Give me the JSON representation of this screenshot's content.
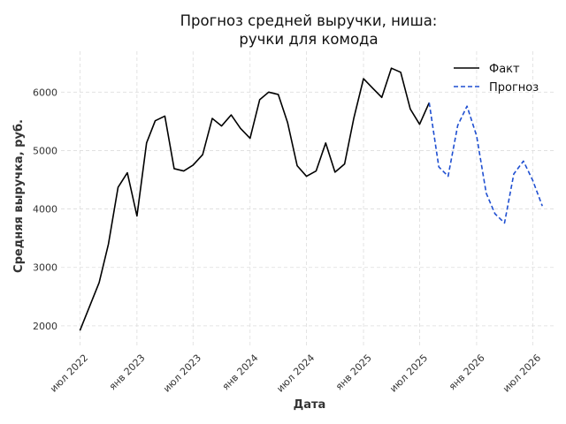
{
  "chart_data": {
    "type": "line",
    "title": [
      "Прогноз средней выручки, ниша:",
      "ручки для комода"
    ],
    "xlabel": "Дата",
    "ylabel": "Средняя выручка, руб.",
    "ylim": [
      1650,
      6700
    ],
    "xlim": [
      "2022-05-01",
      "2026-09-15"
    ],
    "yticks": [
      2000,
      3000,
      4000,
      5000,
      6000
    ],
    "xticks": [
      {
        "date": "2022-07-01",
        "label": "июл 2022"
      },
      {
        "date": "2023-01-01",
        "label": "янв 2023"
      },
      {
        "date": "2023-07-01",
        "label": "июл 2023"
      },
      {
        "date": "2024-01-01",
        "label": "янв 2024"
      },
      {
        "date": "2024-07-01",
        "label": "июл 2024"
      },
      {
        "date": "2025-01-01",
        "label": "янв 2025"
      },
      {
        "date": "2025-07-01",
        "label": "июл 2025"
      },
      {
        "date": "2026-01-01",
        "label": "янв 2026"
      },
      {
        "date": "2026-07-01",
        "label": "июл 2026"
      }
    ],
    "grid": true,
    "legend_position": "top-right",
    "series": [
      {
        "name": "Факт",
        "color": "#000000",
        "style": "solid",
        "points": [
          [
            "2022-07-01",
            1920
          ],
          [
            "2022-08-01",
            2330
          ],
          [
            "2022-09-01",
            2740
          ],
          [
            "2022-10-01",
            3400
          ],
          [
            "2022-11-01",
            4370
          ],
          [
            "2022-12-01",
            4620
          ],
          [
            "2023-01-01",
            3880
          ],
          [
            "2023-02-01",
            5130
          ],
          [
            "2023-03-01",
            5510
          ],
          [
            "2023-04-01",
            5590
          ],
          [
            "2023-05-01",
            4690
          ],
          [
            "2023-06-01",
            4650
          ],
          [
            "2023-07-01",
            4750
          ],
          [
            "2023-08-01",
            4930
          ],
          [
            "2023-09-01",
            5550
          ],
          [
            "2023-10-01",
            5420
          ],
          [
            "2023-11-01",
            5610
          ],
          [
            "2023-12-01",
            5380
          ],
          [
            "2024-01-01",
            5210
          ],
          [
            "2024-02-01",
            5870
          ],
          [
            "2024-03-01",
            6000
          ],
          [
            "2024-04-01",
            5960
          ],
          [
            "2024-05-01",
            5480
          ],
          [
            "2024-06-01",
            4740
          ],
          [
            "2024-07-01",
            4560
          ],
          [
            "2024-08-01",
            4650
          ],
          [
            "2024-09-01",
            5130
          ],
          [
            "2024-10-01",
            4630
          ],
          [
            "2024-11-01",
            4770
          ],
          [
            "2024-12-01",
            5560
          ],
          [
            "2025-01-01",
            6230
          ],
          [
            "2025-02-01",
            6060
          ],
          [
            "2025-03-01",
            5910
          ],
          [
            "2025-04-01",
            6410
          ],
          [
            "2025-05-01",
            6340
          ],
          [
            "2025-06-01",
            5710
          ],
          [
            "2025-07-01",
            5450
          ],
          [
            "2025-08-01",
            5820
          ]
        ]
      },
      {
        "name": "Прогноз",
        "color": "#1f4fd1",
        "style": "dashed",
        "points": [
          [
            "2025-08-01",
            5820
          ],
          [
            "2025-09-01",
            4720
          ],
          [
            "2025-10-01",
            4560
          ],
          [
            "2025-11-01",
            5430
          ],
          [
            "2025-12-01",
            5760
          ],
          [
            "2026-01-01",
            5250
          ],
          [
            "2026-02-01",
            4270
          ],
          [
            "2026-03-01",
            3920
          ],
          [
            "2026-04-01",
            3760
          ],
          [
            "2026-05-01",
            4600
          ],
          [
            "2026-06-01",
            4820
          ],
          [
            "2026-07-01",
            4490
          ],
          [
            "2026-08-01",
            4050
          ]
        ]
      }
    ]
  }
}
